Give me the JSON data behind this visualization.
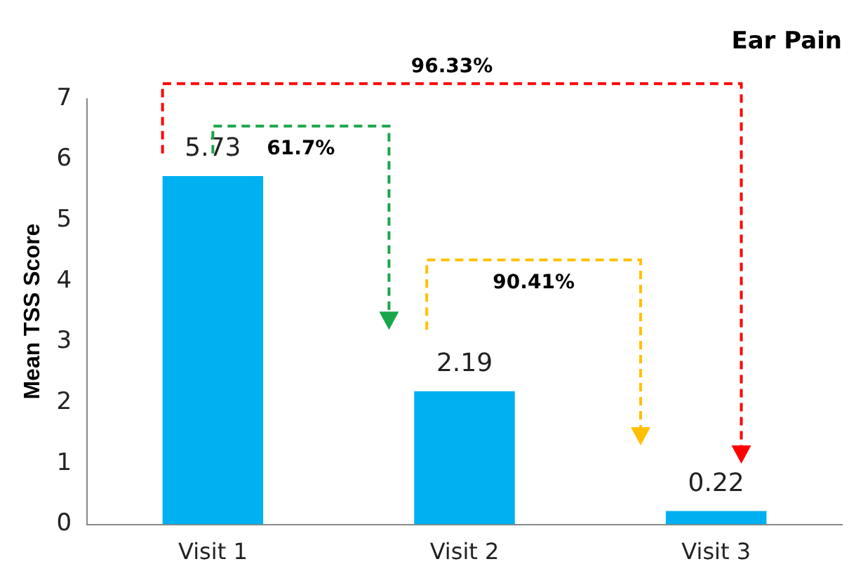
{
  "chart_data": {
    "type": "bar",
    "title": "Ear Pain",
    "ylabel": "Mean TSS Score",
    "categories": [
      "Visit 1",
      "Visit 2",
      "Visit 3"
    ],
    "values": [
      5.73,
      2.19,
      0.22
    ],
    "color": "#00b0f0",
    "ylim": [
      0,
      7
    ],
    "yticks": [
      0,
      1,
      2,
      3,
      4,
      5,
      6,
      7
    ],
    "grid": false,
    "legend": false,
    "data_labels": true,
    "annotations": [
      "96.33%",
      "61.7%",
      "90.41%"
    ]
  }
}
